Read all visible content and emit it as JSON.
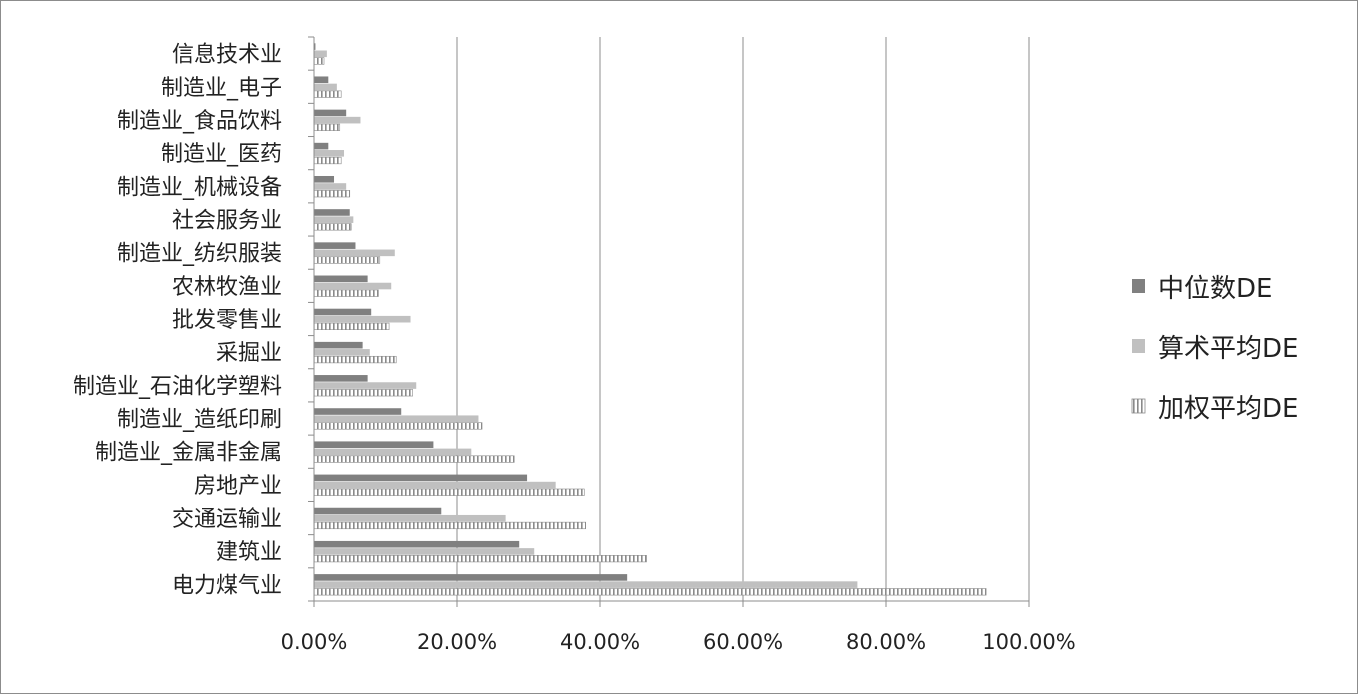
{
  "chart_data": {
    "type": "bar",
    "orientation": "horizontal",
    "categories": [
      "信息技术业",
      "制造业_电子",
      "制造业_食品饮料",
      "制造业_医药",
      "制造业_机械设备",
      "社会服务业",
      "制造业_纺织服装",
      "农林牧渔业",
      "批发零售业",
      "采掘业",
      "制造业_石油化学塑料",
      "制造业_造纸印刷",
      "制造业_金属非金属",
      "房地产业",
      "交通运输业",
      "建筑业",
      "电力煤气业"
    ],
    "series": [
      {
        "name": "中位数DE",
        "color": "#808080",
        "pattern": "solid",
        "values": [
          0.002,
          0.02,
          0.045,
          0.02,
          0.028,
          0.05,
          0.058,
          0.075,
          0.08,
          0.068,
          0.075,
          0.122,
          0.167,
          0.298,
          0.178,
          0.287,
          0.438
        ]
      },
      {
        "name": "算术平均DE",
        "color": "#c0c0c0",
        "pattern": "solid",
        "values": [
          0.018,
          0.032,
          0.065,
          0.042,
          0.045,
          0.055,
          0.113,
          0.108,
          0.135,
          0.078,
          0.143,
          0.23,
          0.22,
          0.338,
          0.268,
          0.308,
          0.76
        ]
      },
      {
        "name": "加权平均DE",
        "color": "#8a8a8a",
        "pattern": "vertical-stripes",
        "values": [
          0.014,
          0.038,
          0.036,
          0.038,
          0.05,
          0.052,
          0.092,
          0.09,
          0.105,
          0.115,
          0.138,
          0.235,
          0.28,
          0.378,
          0.38,
          0.465,
          0.94
        ]
      }
    ],
    "xlim": [
      0,
      1
    ],
    "x_ticks": [
      0,
      0.2,
      0.4,
      0.6,
      0.8,
      1.0
    ],
    "x_tick_labels": [
      "0.00%",
      "20.00%",
      "40.00%",
      "60.00%",
      "80.00%",
      "100.00%"
    ],
    "grid": "vertical",
    "legend": "right",
    "title": "",
    "xlabel": "",
    "ylabel": ""
  }
}
